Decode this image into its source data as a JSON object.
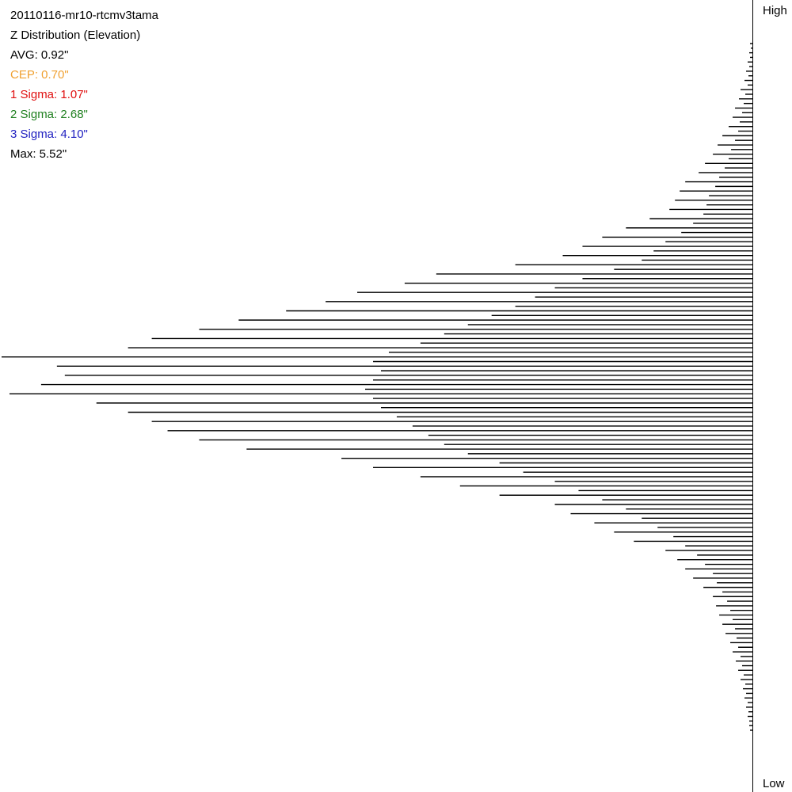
{
  "chart_data": {
    "type": "bar",
    "orientation": "horizontal",
    "title": "20110116-mr10-rtcmv3tama",
    "subtitle": "Z Distribution (Elevation)",
    "stats": [
      {
        "text": "AVG: 0.92\"",
        "color": "#000000"
      },
      {
        "text": "CEP: 0.70\"",
        "color": "#f0a030"
      },
      {
        "text": "1 Sigma: 1.07\"",
        "color": "#e01010"
      },
      {
        "text": "2 Sigma: 2.68\"",
        "color": "#208020"
      },
      {
        "text": "3 Sigma: 4.10\"",
        "color": "#2020c0"
      },
      {
        "text": "Max: 5.52\"",
        "color": "#000000"
      }
    ],
    "axis_top_label": "High",
    "axis_bottom_label": "Low",
    "color": "#000000",
    "xlim": [
      0,
      950
    ],
    "values": [
      3,
      2,
      4,
      3,
      6,
      4,
      8,
      5,
      10,
      6,
      15,
      9,
      17,
      11,
      22,
      13,
      25,
      16,
      30,
      18,
      38,
      22,
      44,
      27,
      50,
      30,
      60,
      35,
      68,
      42,
      85,
      47,
      92,
      55,
      98,
      58,
      105,
      62,
      130,
      75,
      160,
      90,
      190,
      110,
      215,
      125,
      240,
      140,
      300,
      175,
      400,
      215,
      440,
      250,
      500,
      275,
      540,
      300,
      590,
      330,
      650,
      360,
      700,
      390,
      760,
      420,
      790,
      460,
      950,
      480,
      880,
      470,
      870,
      480,
      900,
      490,
      940,
      480,
      830,
      470,
      790,
      450,
      760,
      430,
      740,
      410,
      700,
      390,
      640,
      360,
      520,
      320,
      480,
      290,
      420,
      250,
      370,
      220,
      320,
      190,
      250,
      160,
      230,
      140,
      200,
      120,
      175,
      100,
      150,
      85,
      110,
      70,
      95,
      60,
      85,
      50,
      75,
      45,
      62,
      38,
      50,
      32,
      46,
      28,
      42,
      25,
      38,
      22,
      34,
      20,
      28,
      18,
      25,
      15,
      21,
      13,
      18,
      11,
      15,
      9,
      12,
      8,
      10,
      6,
      8,
      5,
      6,
      4,
      4,
      3
    ]
  }
}
